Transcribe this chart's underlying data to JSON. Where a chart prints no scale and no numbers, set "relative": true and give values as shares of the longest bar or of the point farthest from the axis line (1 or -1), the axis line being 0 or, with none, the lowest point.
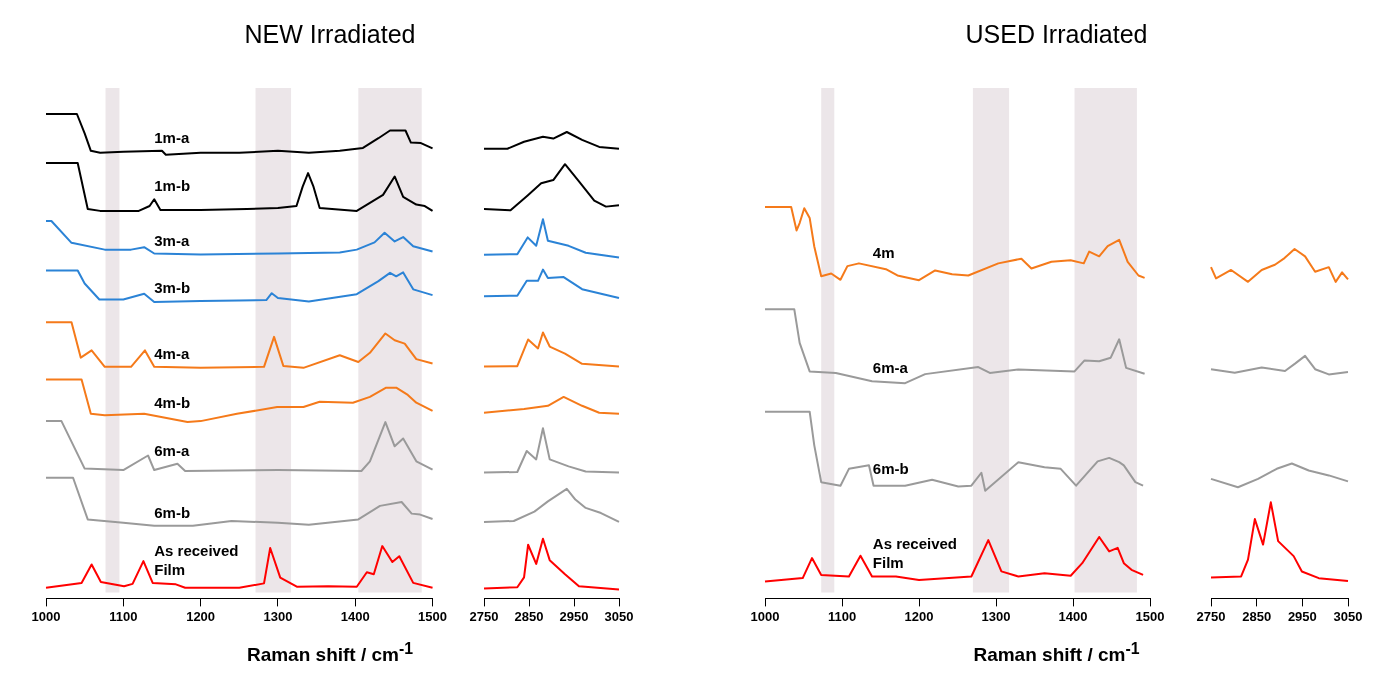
{
  "chart_data": [
    {
      "type": "line",
      "title": "NEW Irradiated",
      "xlabel": "Raman shift / cm$^{-1}$",
      "relative": true,
      "xlim": [
        1000,
        1500
      ],
      "xticks": [
        1000,
        1100,
        1200,
        1300,
        1400,
        1500
      ],
      "bands": [
        {
          "axis": "x",
          "from": 1077,
          "to": 1095,
          "color": "#ece6e9"
        },
        {
          "axis": "x",
          "from": 1271,
          "to": 1317,
          "color": "#ece6e9"
        },
        {
          "axis": "x",
          "from": 1404,
          "to": 1486,
          "color": "#ece6e9"
        }
      ],
      "series": [
        {
          "name": "1m-a",
          "color": "#000000",
          "x": [
            1000,
            1040,
            1050,
            1058,
            1070,
            1100,
            1150,
            1155,
            1200,
            1250,
            1300,
            1340,
            1380,
            1410,
            1430,
            1445,
            1465,
            1472,
            1485,
            1500
          ],
          "values": [
            1.0,
            1.0,
            0.96,
            0.924,
            0.92,
            0.922,
            0.924,
            0.916,
            0.92,
            0.92,
            0.924,
            0.92,
            0.924,
            0.93,
            0.95,
            0.966,
            0.966,
            0.941,
            0.94,
            0.929
          ]
        },
        {
          "name": "1m-b",
          "color": "#000000",
          "x": [
            1000,
            1041,
            1054,
            1070,
            1120,
            1134,
            1140,
            1148,
            1200,
            1260,
            1300,
            1324,
            1332,
            1339,
            1346,
            1354,
            1402,
            1436,
            1451,
            1462,
            1479,
            1490,
            1500
          ],
          "values": [
            0.899,
            0.899,
            0.804,
            0.8,
            0.8,
            0.81,
            0.824,
            0.802,
            0.802,
            0.804,
            0.806,
            0.81,
            0.85,
            0.878,
            0.85,
            0.806,
            0.8,
            0.833,
            0.871,
            0.829,
            0.813,
            0.81,
            0.8
          ]
        },
        {
          "name": "3m-a",
          "color": "#2b83d6",
          "x": [
            1000,
            1007,
            1033,
            1076,
            1110,
            1127,
            1140,
            1200,
            1300,
            1380,
            1402,
            1425,
            1438,
            1451,
            1462,
            1475,
            1500
          ],
          "values": [
            0.779,
            0.779,
            0.734,
            0.72,
            0.72,
            0.725,
            0.712,
            0.71,
            0.712,
            0.714,
            0.72,
            0.735,
            0.755,
            0.737,
            0.746,
            0.727,
            0.716
          ]
        },
        {
          "name": "3m-b",
          "color": "#2b83d6",
          "x": [
            1000,
            1041,
            1050,
            1069,
            1100,
            1127,
            1140,
            1200,
            1250,
            1285,
            1292,
            1300,
            1340,
            1402,
            1430,
            1445,
            1453,
            1462,
            1475,
            1500
          ],
          "values": [
            0.677,
            0.677,
            0.65,
            0.617,
            0.617,
            0.629,
            0.612,
            0.614,
            0.615,
            0.616,
            0.63,
            0.62,
            0.613,
            0.628,
            0.655,
            0.672,
            0.665,
            0.673,
            0.638,
            0.626
          ]
        },
        {
          "name": "4m-a",
          "color": "#f57a1a",
          "x": [
            1000,
            1033,
            1045,
            1059,
            1076,
            1110,
            1128,
            1140,
            1200,
            1282,
            1295,
            1307,
            1333,
            1380,
            1404,
            1419,
            1439,
            1451,
            1464,
            1479,
            1500
          ],
          "values": [
            0.57,
            0.57,
            0.497,
            0.512,
            0.478,
            0.478,
            0.512,
            0.478,
            0.476,
            0.478,
            0.54,
            0.48,
            0.476,
            0.502,
            0.488,
            0.507,
            0.547,
            0.533,
            0.526,
            0.494,
            0.485
          ]
        },
        {
          "name": "4m-b",
          "color": "#f57a1a",
          "x": [
            1000,
            1046,
            1058,
            1076,
            1127,
            1183,
            1200,
            1247,
            1299,
            1333,
            1354,
            1397,
            1419,
            1440,
            1453,
            1468,
            1479,
            1500
          ],
          "values": [
            0.452,
            0.452,
            0.381,
            0.378,
            0.381,
            0.364,
            0.366,
            0.381,
            0.395,
            0.395,
            0.406,
            0.404,
            0.416,
            0.435,
            0.435,
            0.42,
            0.404,
            0.387
          ]
        },
        {
          "name": "6m-a",
          "color": "#9a9a9a",
          "x": [
            1000,
            1020,
            1050,
            1100,
            1132,
            1140,
            1170,
            1180,
            1300,
            1408,
            1419,
            1439,
            1451,
            1462,
            1479,
            1500
          ],
          "values": [
            0.366,
            0.366,
            0.268,
            0.265,
            0.295,
            0.265,
            0.278,
            0.263,
            0.265,
            0.263,
            0.283,
            0.364,
            0.314,
            0.33,
            0.283,
            0.266
          ]
        },
        {
          "name": "6m-b",
          "color": "#9a9a9a",
          "x": [
            1000,
            1035,
            1054,
            1100,
            1140,
            1190,
            1240,
            1300,
            1340,
            1404,
            1432,
            1460,
            1473,
            1484,
            1500
          ],
          "values": [
            0.249,
            0.249,
            0.163,
            0.156,
            0.15,
            0.15,
            0.16,
            0.156,
            0.152,
            0.163,
            0.191,
            0.199,
            0.175,
            0.173,
            0.164
          ]
        },
        {
          "name": "As received Film",
          "color": "#ff0000",
          "x": [
            1000,
            1046,
            1059,
            1071,
            1101,
            1112,
            1126,
            1138,
            1168,
            1180,
            1250,
            1282,
            1290,
            1303,
            1325,
            1365,
            1402,
            1415,
            1424,
            1435,
            1448,
            1457,
            1475,
            1500
          ],
          "values": [
            0.022,
            0.032,
            0.07,
            0.034,
            0.025,
            0.03,
            0.077,
            0.032,
            0.029,
            0.022,
            0.022,
            0.031,
            0.104,
            0.043,
            0.024,
            0.025,
            0.024,
            0.054,
            0.05,
            0.108,
            0.075,
            0.087,
            0.032,
            0.022
          ]
        }
      ]
    },
    {
      "type": "line",
      "relative": true,
      "xlim": [
        2750,
        3050
      ],
      "xticks": [
        2750,
        2850,
        2950,
        3050
      ],
      "series": [
        {
          "color": "#000000",
          "x": [
            2750,
            2802,
            2839,
            2881,
            2904,
            2934,
            2968,
            3006,
            3050
          ],
          "values": [
            0.964,
            0.964,
            0.979,
            0.99,
            0.986,
            1.0,
            0.983,
            0.968,
            0.964
          ]
        },
        {
          "color": "#000000",
          "x": [
            2750,
            2809,
            2847,
            2877,
            2904,
            2930,
            2961,
            2995,
            3021,
            3050
          ],
          "values": [
            0.835,
            0.832,
            0.864,
            0.89,
            0.897,
            0.931,
            0.894,
            0.853,
            0.84,
            0.843
          ]
        },
        {
          "color": "#2b83d6",
          "x": [
            2750,
            2824,
            2847,
            2866,
            2881,
            2892,
            2938,
            2976,
            3050
          ],
          "values": [
            0.737,
            0.738,
            0.774,
            0.756,
            0.813,
            0.767,
            0.756,
            0.741,
            0.731
          ]
        },
        {
          "color": "#2b83d6",
          "x": [
            2750,
            2824,
            2845,
            2870,
            2881,
            2892,
            2927,
            2968,
            3050
          ],
          "values": [
            0.648,
            0.649,
            0.681,
            0.681,
            0.705,
            0.687,
            0.689,
            0.663,
            0.644
          ]
        },
        {
          "color": "#f57a1a",
          "x": [
            2750,
            2824,
            2848,
            2870,
            2881,
            2896,
            2930,
            2968,
            3050
          ],
          "values": [
            0.497,
            0.498,
            0.555,
            0.536,
            0.57,
            0.54,
            0.525,
            0.503,
            0.497
          ]
        },
        {
          "color": "#f57a1a",
          "x": [
            2750,
            2839,
            2892,
            2927,
            2968,
            3006,
            3050
          ],
          "values": [
            0.398,
            0.406,
            0.413,
            0.432,
            0.413,
            0.398,
            0.396
          ]
        },
        {
          "color": "#9a9a9a",
          "x": [
            2750,
            2824,
            2845,
            2866,
            2881,
            2896,
            2938,
            2976,
            3050
          ],
          "values": [
            0.27,
            0.271,
            0.316,
            0.298,
            0.365,
            0.298,
            0.283,
            0.272,
            0.27
          ]
        },
        {
          "color": "#9a9a9a",
          "x": [
            2750,
            2816,
            2862,
            2892,
            2934,
            2953,
            2976,
            3010,
            3050
          ],
          "values": [
            0.164,
            0.166,
            0.186,
            0.208,
            0.235,
            0.212,
            0.194,
            0.183,
            0.164
          ]
        },
        {
          "color": "#ff0000",
          "x": [
            2750,
            2824,
            2839,
            2848,
            2866,
            2881,
            2896,
            2930,
            2961,
            3050
          ],
          "values": [
            0.021,
            0.024,
            0.045,
            0.115,
            0.074,
            0.128,
            0.082,
            0.052,
            0.026,
            0.019
          ]
        }
      ]
    },
    {
      "type": "line",
      "title": "USED Irradiated",
      "xlabel": "Raman shift / cm$^{-1}$",
      "relative": true,
      "xlim": [
        1000,
        1500
      ],
      "xticks": [
        1000,
        1100,
        1200,
        1300,
        1400,
        1500
      ],
      "bands": [
        {
          "axis": "x",
          "from": 1073,
          "to": 1090,
          "color": "#ece6e9"
        },
        {
          "axis": "x",
          "from": 1270,
          "to": 1317,
          "color": "#ece6e9"
        },
        {
          "axis": "x",
          "from": 1402,
          "to": 1483,
          "color": "#ece6e9"
        }
      ],
      "series": [
        {
          "name": "4m",
          "color": "#f57a1a",
          "x": [
            1000,
            1034,
            1041,
            1045,
            1051,
            1058,
            1064,
            1073,
            1086,
            1098,
            1107,
            1122,
            1157,
            1172,
            1200,
            1221,
            1243,
            1264,
            1303,
            1333,
            1346,
            1372,
            1397,
            1414,
            1421,
            1434,
            1445,
            1460,
            1471,
            1485,
            1493
          ],
          "values": [
            1.0,
            1.0,
            0.94,
            0.959,
            0.997,
            0.972,
            0.899,
            0.823,
            0.83,
            0.814,
            0.849,
            0.856,
            0.841,
            0.825,
            0.813,
            0.838,
            0.828,
            0.825,
            0.856,
            0.868,
            0.843,
            0.86,
            0.864,
            0.856,
            0.886,
            0.874,
            0.9,
            0.916,
            0.86,
            0.825,
            0.819
          ]
        },
        {
          "name": "6m-a",
          "color": "#9a9a9a",
          "x": [
            1000,
            1038,
            1045,
            1058,
            1092,
            1139,
            1182,
            1208,
            1277,
            1292,
            1329,
            1402,
            1415,
            1434,
            1449,
            1460,
            1469,
            1493
          ],
          "values": [
            0.739,
            0.739,
            0.653,
            0.58,
            0.576,
            0.555,
            0.55,
            0.573,
            0.591,
            0.576,
            0.585,
            0.58,
            0.608,
            0.606,
            0.615,
            0.662,
            0.589,
            0.574
          ]
        },
        {
          "name": "6m-b",
          "color": "#9a9a9a",
          "x": [
            1000,
            1058,
            1064,
            1073,
            1098,
            1109,
            1135,
            1141,
            1182,
            1217,
            1251,
            1268,
            1281,
            1286,
            1329,
            1363,
            1384,
            1404,
            1432,
            1447,
            1460,
            1466,
            1481,
            1491
          ],
          "values": [
            0.477,
            0.477,
            0.391,
            0.297,
            0.288,
            0.331,
            0.34,
            0.288,
            0.288,
            0.303,
            0.286,
            0.288,
            0.321,
            0.275,
            0.348,
            0.335,
            0.331,
            0.288,
            0.35,
            0.359,
            0.348,
            0.34,
            0.297,
            0.288
          ]
        },
        {
          "name": "As received Film",
          "color": "#ff0000",
          "x": [
            1000,
            1049,
            1061,
            1073,
            1109,
            1124,
            1139,
            1170,
            1200,
            1268,
            1290,
            1307,
            1329,
            1363,
            1397,
            1412,
            1434,
            1447,
            1458,
            1466,
            1476,
            1491
          ],
          "values": [
            0.043,
            0.052,
            0.103,
            0.06,
            0.056,
            0.109,
            0.056,
            0.056,
            0.047,
            0.056,
            0.149,
            0.069,
            0.056,
            0.064,
            0.058,
            0.09,
            0.157,
            0.12,
            0.129,
            0.09,
            0.073,
            0.06
          ]
        }
      ]
    },
    {
      "type": "line",
      "relative": true,
      "xlim": [
        2750,
        3050
      ],
      "xticks": [
        2750,
        2850,
        2950,
        3050
      ],
      "series": [
        {
          "color": "#f57a1a",
          "x": [
            2750,
            2761,
            2794,
            2831,
            2861,
            2890,
            2911,
            2933,
            2956,
            2978,
            3008,
            3023,
            3037,
            3050
          ],
          "values": [
            0.948,
            0.916,
            0.94,
            0.906,
            0.94,
            0.955,
            0.974,
            1.0,
            0.979,
            0.935,
            0.948,
            0.906,
            0.933,
            0.913
          ]
        },
        {
          "color": "#9a9a9a",
          "x": [
            2750,
            2802,
            2861,
            2912,
            2934,
            2956,
            2978,
            3008,
            3050
          ],
          "values": [
            0.656,
            0.646,
            0.661,
            0.651,
            0.672,
            0.694,
            0.656,
            0.641,
            0.648
          ]
        },
        {
          "color": "#9a9a9a",
          "x": [
            2750,
            2809,
            2853,
            2894,
            2927,
            2964,
            3008,
            3050
          ],
          "values": [
            0.342,
            0.318,
            0.342,
            0.371,
            0.386,
            0.366,
            0.352,
            0.335
          ]
        },
        {
          "color": "#ff0000",
          "x": [
            2750,
            2816,
            2831,
            2846,
            2864,
            2881,
            2897,
            2931,
            2949,
            2986,
            3050
          ],
          "values": [
            0.06,
            0.063,
            0.111,
            0.227,
            0.154,
            0.275,
            0.164,
            0.121,
            0.077,
            0.058,
            0.05
          ]
        }
      ]
    }
  ]
}
